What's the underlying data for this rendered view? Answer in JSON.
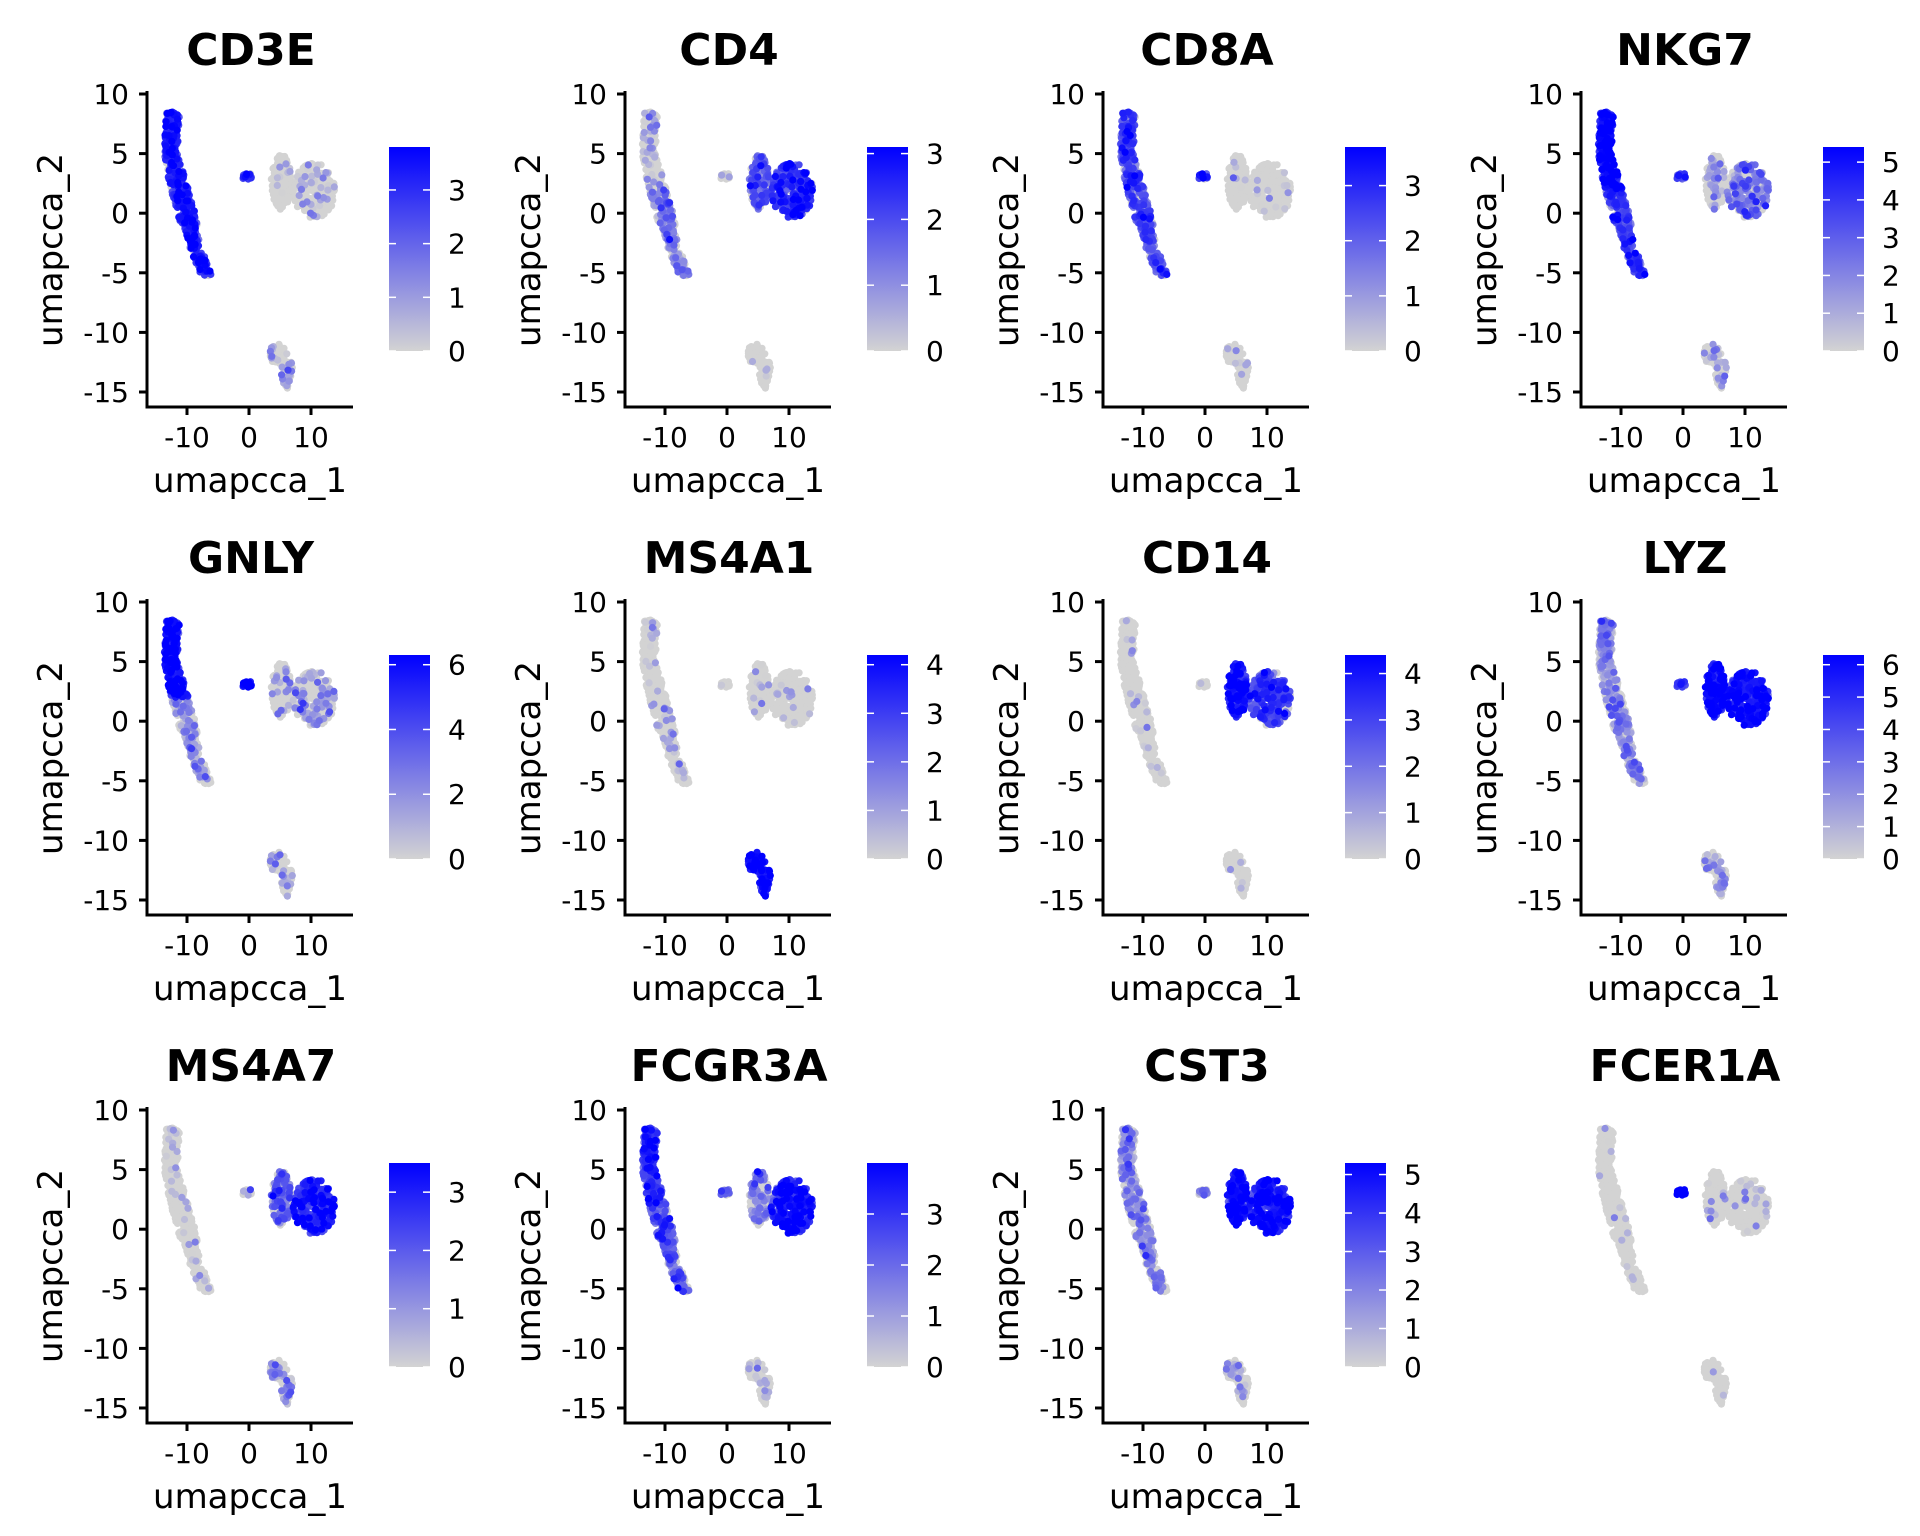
{
  "chart_data": [
    {
      "type": "scatter",
      "title": "CD3E",
      "xlabel": "umapcca_1",
      "ylabel": "umapcca_2",
      "legend_ticks": [
        0,
        1,
        2,
        3
      ],
      "legend_max": 3.8,
      "expression_by_region": {
        "strand_top": 0.75,
        "strand_bottom": 0.75,
        "small": 0.7,
        "myeloid_left": 0.05,
        "myeloid_right": 0.12,
        "b_cells": 0.2
      }
    },
    {
      "type": "scatter",
      "title": "CD4",
      "xlabel": "umapcca_1",
      "ylabel": "umapcca_2",
      "legend_ticks": [
        0,
        1,
        2,
        3
      ],
      "legend_max": 3.1,
      "expression_by_region": {
        "strand_top": 0.15,
        "strand_bottom": 0.35,
        "small": 0.1,
        "myeloid_left": 0.5,
        "myeloid_right": 0.7,
        "b_cells": 0.05
      }
    },
    {
      "type": "scatter",
      "title": "CD8A",
      "xlabel": "umapcca_1",
      "ylabel": "umapcca_2",
      "legend_ticks": [
        0,
        1,
        2,
        3
      ],
      "legend_max": 3.7,
      "expression_by_region": {
        "strand_top": 0.6,
        "strand_bottom": 0.55,
        "small": 0.7,
        "myeloid_left": 0.04,
        "myeloid_right": 0.04,
        "b_cells": 0.04
      }
    },
    {
      "type": "scatter",
      "title": "NKG7",
      "xlabel": "umapcca_1",
      "ylabel": "umapcca_2",
      "legend_ticks": [
        0,
        1,
        2,
        3,
        4,
        5
      ],
      "legend_max": 5.4,
      "expression_by_region": {
        "strand_top": 0.85,
        "strand_bottom": 0.6,
        "small": 0.7,
        "myeloid_left": 0.2,
        "myeloid_right": 0.4,
        "b_cells": 0.2
      }
    },
    {
      "type": "scatter",
      "title": "GNLY",
      "xlabel": "umapcca_1",
      "ylabel": "umapcca_2",
      "legend_ticks": [
        0,
        2,
        4,
        6
      ],
      "legend_max": 6.3,
      "expression_by_region": {
        "strand_top": 0.85,
        "strand_bottom": 0.3,
        "small": 0.8,
        "myeloid_left": 0.15,
        "myeloid_right": 0.25,
        "b_cells": 0.2
      }
    },
    {
      "type": "scatter",
      "title": "MS4A1",
      "xlabel": "umapcca_1",
      "ylabel": "umapcca_2",
      "legend_ticks": [
        0,
        1,
        2,
        3,
        4
      ],
      "legend_max": 4.2,
      "expression_by_region": {
        "strand_top": 0.08,
        "strand_bottom": 0.08,
        "small": 0.05,
        "myeloid_left": 0.05,
        "myeloid_right": 0.05,
        "b_cells": 0.85
      }
    },
    {
      "type": "scatter",
      "title": "CD14",
      "xlabel": "umapcca_1",
      "ylabel": "umapcca_2",
      "legend_ticks": [
        0,
        1,
        2,
        3,
        4
      ],
      "legend_max": 4.4,
      "expression_by_region": {
        "strand_top": 0.05,
        "strand_bottom": 0.05,
        "small": 0.1,
        "myeloid_left": 0.85,
        "myeloid_right": 0.6,
        "b_cells": 0.05
      }
    },
    {
      "type": "scatter",
      "title": "LYZ",
      "xlabel": "umapcca_1",
      "ylabel": "umapcca_2",
      "legend_ticks": [
        0,
        1,
        2,
        3,
        4,
        5,
        6
      ],
      "legend_max": 6.3,
      "expression_by_region": {
        "strand_top": 0.3,
        "strand_bottom": 0.3,
        "small": 0.7,
        "myeloid_left": 0.9,
        "myeloid_right": 0.85,
        "b_cells": 0.25
      }
    },
    {
      "type": "scatter",
      "title": "MS4A7",
      "xlabel": "umapcca_1",
      "ylabel": "umapcca_2",
      "legend_ticks": [
        0,
        1,
        2,
        3
      ],
      "legend_max": 3.5,
      "expression_by_region": {
        "strand_top": 0.04,
        "strand_bottom": 0.04,
        "small": 0.1,
        "myeloid_left": 0.5,
        "myeloid_right": 0.75,
        "b_cells": 0.3
      }
    },
    {
      "type": "scatter",
      "title": "FCGR3A",
      "xlabel": "umapcca_1",
      "ylabel": "umapcca_2",
      "legend_ticks": [
        0,
        1,
        2,
        3
      ],
      "legend_max": 4.0,
      "expression_by_region": {
        "strand_top": 0.7,
        "strand_bottom": 0.5,
        "small": 0.5,
        "myeloid_left": 0.35,
        "myeloid_right": 0.8,
        "b_cells": 0.1
      }
    },
    {
      "type": "scatter",
      "title": "CST3",
      "xlabel": "umapcca_1",
      "ylabel": "umapcca_2",
      "legend_ticks": [
        0,
        1,
        2,
        3,
        4,
        5
      ],
      "legend_max": 5.3,
      "expression_by_region": {
        "strand_top": 0.3,
        "strand_bottom": 0.3,
        "small": 0.4,
        "myeloid_left": 0.85,
        "myeloid_right": 0.85,
        "b_cells": 0.2
      }
    },
    {
      "type": "scatter",
      "title": "FCER1A",
      "xlabel": "",
      "ylabel": "",
      "legend_ticks": [],
      "legend_max": null,
      "show_axes": false,
      "expression_by_region": {
        "strand_top": 0.01,
        "strand_bottom": 0.02,
        "small": 0.9,
        "myeloid_left": 0.08,
        "myeloid_right": 0.06,
        "b_cells": 0.01
      }
    }
  ],
  "axes": {
    "xlim": [
      -16.5,
      16.6
    ],
    "ylim": [
      -16.3,
      10.3
    ],
    "x_ticks": [
      -10,
      0,
      10
    ],
    "y_ticks": [
      10,
      5,
      0,
      -5,
      -10,
      -15
    ],
    "x_tick_labels": [
      "-10",
      "0",
      "10"
    ],
    "y_tick_labels": [
      "10",
      "5",
      "0",
      "-5",
      "-10",
      "-15"
    ]
  },
  "colors": {
    "low": "#D3D3D3",
    "high": "#0000FF"
  }
}
